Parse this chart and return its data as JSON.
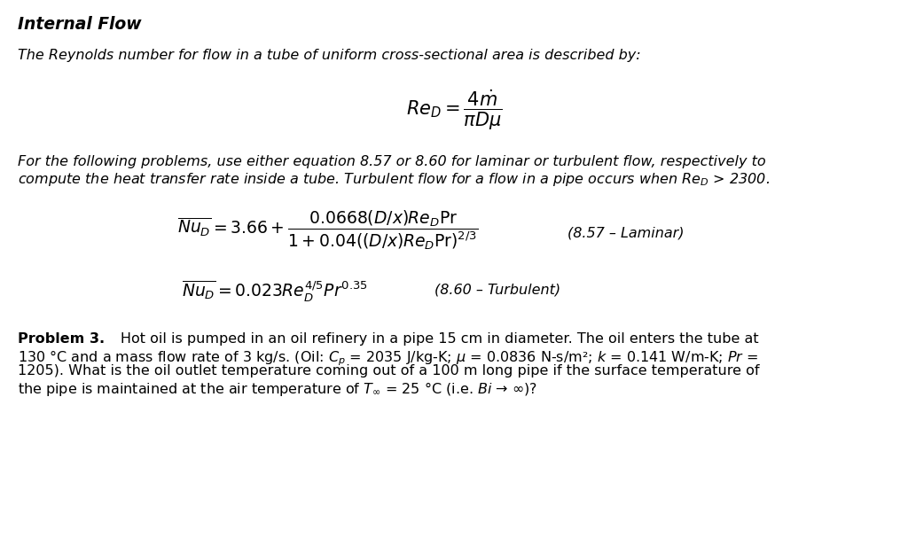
{
  "background_color": "#ffffff",
  "title": "Internal Flow",
  "intro_text": "The Reynolds number for flow in a tube of uniform cross-sectional area is described by:",
  "para2_line1": "For the following problems, use either equation 8.57 or 8.60 for laminar or turbulent flow, respectively to",
  "para2_line2": "compute the heat transfer rate inside a tube. Turbulent flow for a flow in a pipe occurs when Re$_{D}$ > 2300.",
  "eq857_label": "(8.57 – Laminar)",
  "eq860_label": "(8.60 – Turbulent)",
  "prob3_bold": "Problem 3.",
  "prob3_rest": "       Hot oil is pumped in an oil refinery in a pipe 15 cm in diameter. The oil enters the tube at",
  "prob3_line2": "130 °C and a mass flow rate of 3 kg/s. (Oil: $C_p$ = 2035 J/kg-K; $\\mu$ = 0.0836 N-s/m²; $k$ = 0.141 W/m-K; $Pr$ =",
  "prob3_line3": "1205). What is the oil outlet temperature coming out of a 100 m long pipe if the surface temperature of",
  "prob3_line4": "the pipe is maintained at the air temperature of $T_{\\infty}$ = 25 °C (i.e. $Bi$ → ∞)?"
}
